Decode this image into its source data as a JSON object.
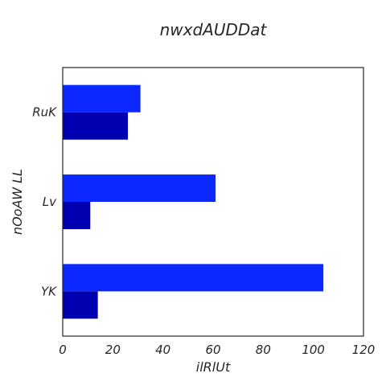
{
  "chart_data": {
    "type": "bar",
    "orientation": "horizontal",
    "title": "nwxdAUDDat",
    "xlabel": "ilRlUt",
    "ylabel": "nOoAW LL",
    "categories": [
      "RuK",
      "Lv",
      "YK"
    ],
    "series": [
      {
        "color": "#0a28ff",
        "values": [
          31,
          61,
          104
        ]
      },
      {
        "color": "#0000b0",
        "values": [
          26,
          11,
          14
        ]
      }
    ],
    "xlim": [
      0,
      120
    ],
    "xticks": [
      0,
      20,
      40,
      60,
      80,
      100,
      120
    ],
    "grid": false,
    "legend": "none"
  }
}
